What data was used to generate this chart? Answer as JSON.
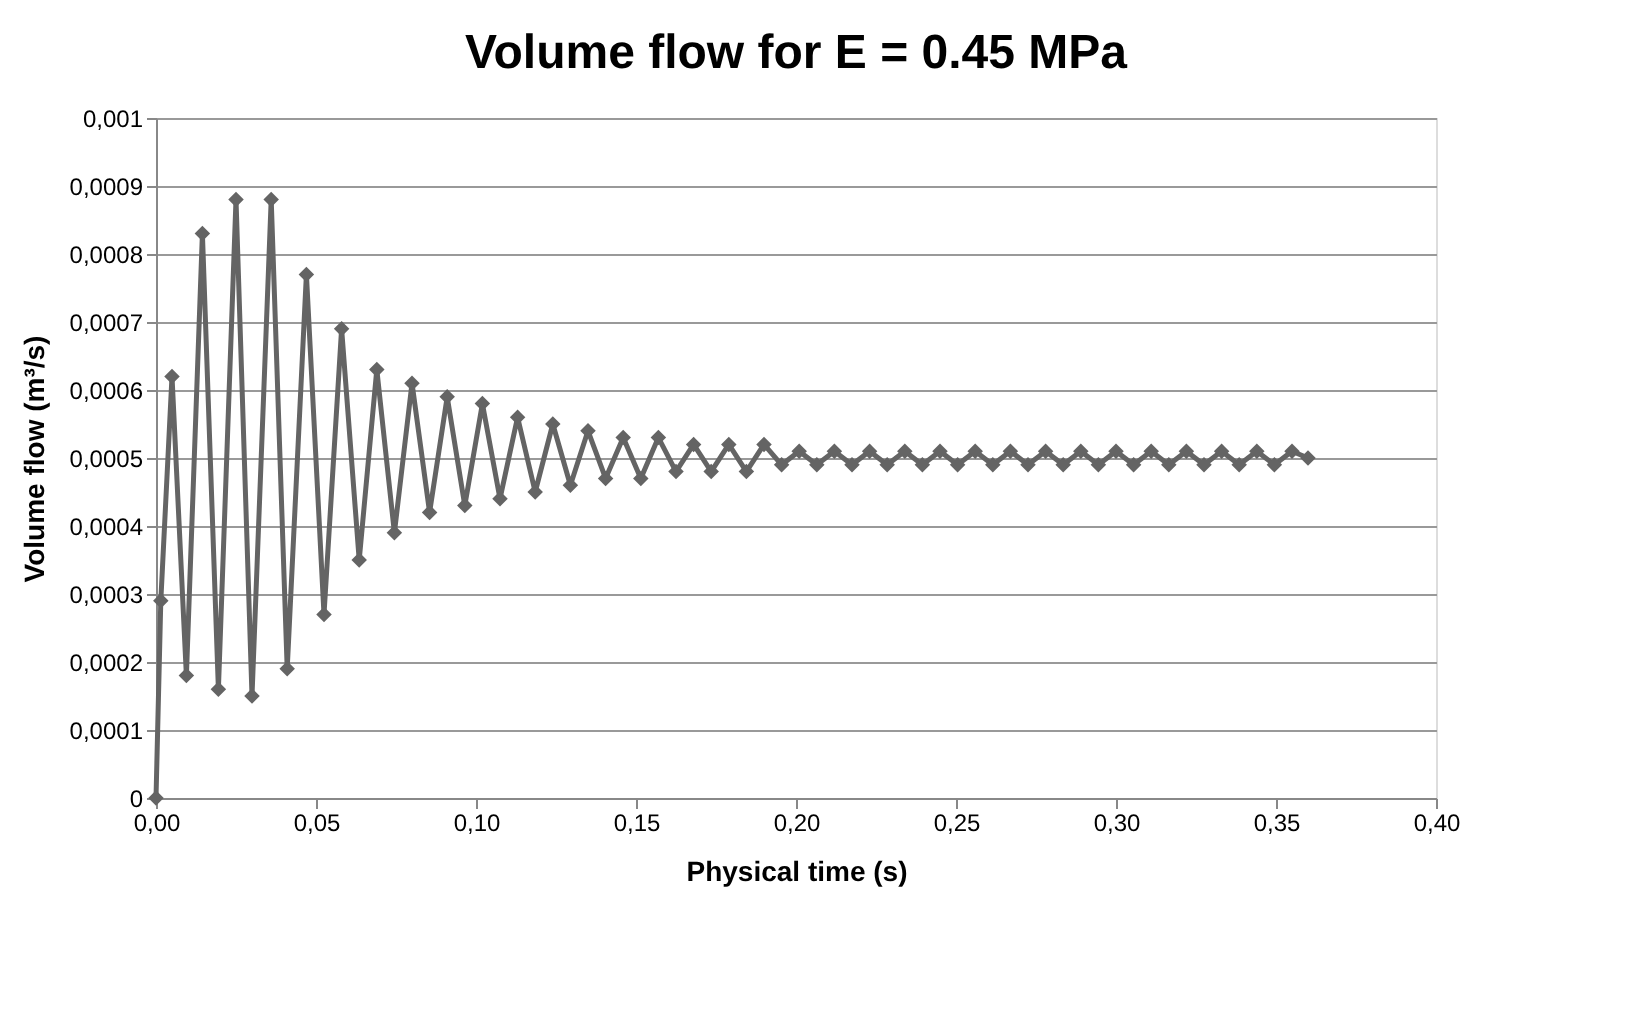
{
  "chart_data": {
    "type": "line",
    "title": "Volume flow for E = 0.45 MPa",
    "xlabel": "Physical time (s)",
    "ylabel": "Volume flow (m³/s)",
    "x": [
      0,
      0.0015,
      0.005,
      0.0095,
      0.0145,
      0.0195,
      0.025,
      0.03,
      0.036,
      0.041,
      0.047,
      0.0525,
      0.058,
      0.0635,
      0.069,
      0.0745,
      0.08,
      0.0855,
      0.091,
      0.0965,
      0.102,
      0.1075,
      0.113,
      0.1185,
      0.124,
      0.1295,
      0.135,
      0.1405,
      0.146,
      0.1515,
      0.157,
      0.1625,
      0.168,
      0.1735,
      0.179,
      0.1845,
      0.19,
      0.1955,
      0.201,
      0.2065,
      0.212,
      0.2175,
      0.223,
      0.2285,
      0.234,
      0.2395,
      0.245,
      0.2505,
      0.256,
      0.2615,
      0.267,
      0.2725,
      0.278,
      0.2835,
      0.289,
      0.2945,
      0.3,
      0.3055,
      0.311,
      0.3165,
      0.322,
      0.3275,
      0.333,
      0.3385,
      0.344,
      0.3495,
      0.355,
      0.36
    ],
    "series": [
      {
        "color": "#646464",
        "values": [
          0,
          0.00029,
          0.00062,
          0.00018,
          0.00083,
          0.00016,
          0.00088,
          0.00015,
          0.00088,
          0.00019,
          0.00077,
          0.00027,
          0.00069,
          0.00035,
          0.00063,
          0.00039,
          0.00061,
          0.00042,
          0.00059,
          0.00043,
          0.00058,
          0.00044,
          0.00056,
          0.00045,
          0.00055,
          0.00046,
          0.00054,
          0.00047,
          0.00053,
          0.00047,
          0.00053,
          0.00048,
          0.00052,
          0.00048,
          0.00052,
          0.00048,
          0.00052,
          0.00049,
          0.00051,
          0.00049,
          0.00051,
          0.00049,
          0.00051,
          0.00049,
          0.00051,
          0.00049,
          0.00051,
          0.00049,
          0.00051,
          0.00049,
          0.00051,
          0.00049,
          0.00051,
          0.00049,
          0.00051,
          0.00049,
          0.00051,
          0.00049,
          0.00051,
          0.00049,
          0.00051,
          0.00049,
          0.00051,
          0.00049,
          0.00051,
          0.00049,
          0.00051,
          0.0005
        ]
      }
    ],
    "xlim": [
      0,
      0.4
    ],
    "xticks": [
      {
        "value": 0,
        "label": "0,00"
      },
      {
        "value": 0.05,
        "label": "0,05"
      },
      {
        "value": 0.1,
        "label": "0,10"
      },
      {
        "value": 0.15,
        "label": "0,15"
      },
      {
        "value": 0.2,
        "label": "0,20"
      },
      {
        "value": 0.25,
        "label": "0,25"
      },
      {
        "value": 0.3,
        "label": "0,30"
      },
      {
        "value": 0.35,
        "label": "0,35"
      },
      {
        "value": 0.4,
        "label": "0,40"
      }
    ],
    "ylim": [
      0,
      0.001
    ],
    "yticks": [
      0,
      {
        "value": 0.0001,
        "label": "0,0001"
      },
      {
        "value": 0.0002,
        "label": "0,0002"
      },
      {
        "value": 0.0003,
        "label": "0,0003"
      },
      {
        "value": 0.0004,
        "label": "0,0004"
      },
      {
        "value": 0.0005,
        "label": "0,0005"
      },
      {
        "value": 0.0006,
        "label": "0,0006"
      },
      {
        "value": 0.0007,
        "label": "0,0007"
      },
      {
        "value": 0.0008,
        "label": "0,0008"
      },
      {
        "value": 0.0009,
        "label": "0,0009"
      },
      {
        "value": 0.001,
        "label": "0,001"
      }
    ],
    "grid": "y",
    "marker": "diamond",
    "line_style": "solid"
  }
}
